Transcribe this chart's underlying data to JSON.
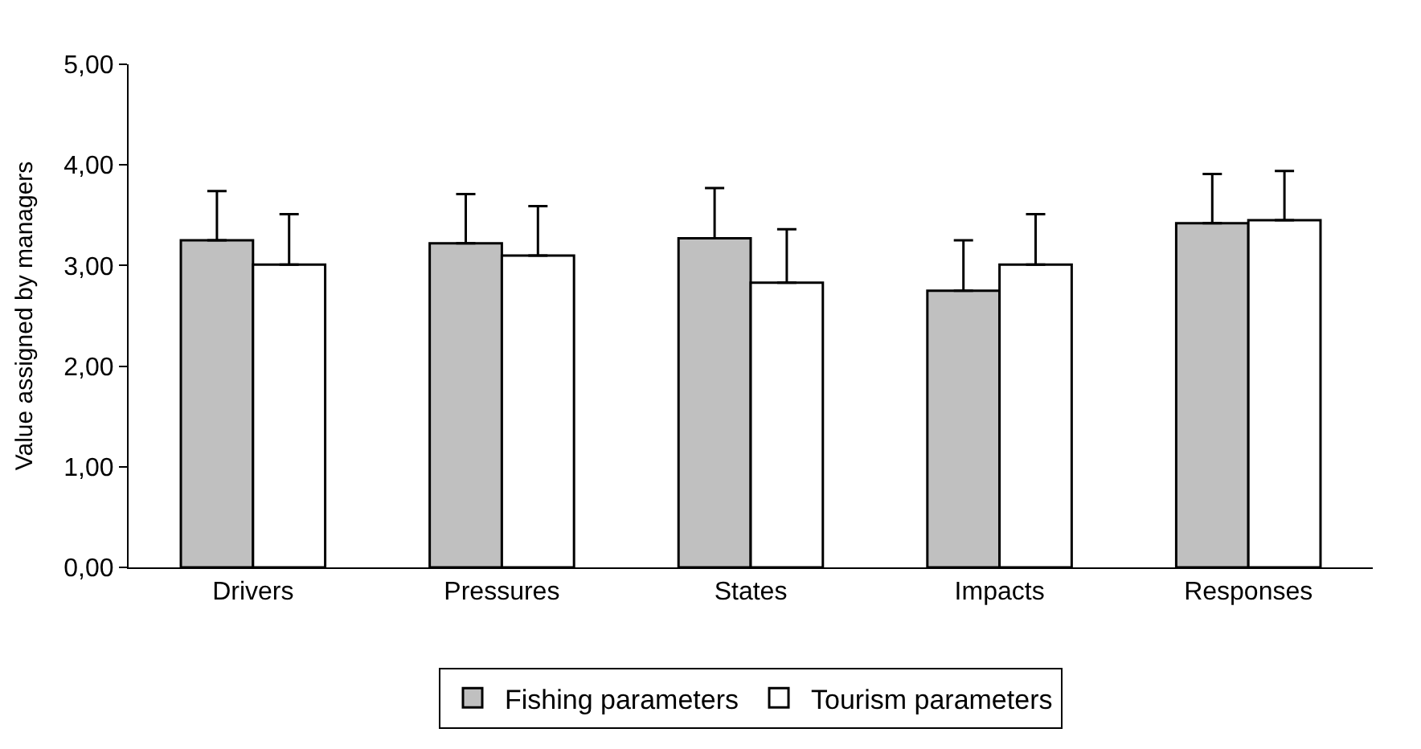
{
  "chart_data": {
    "type": "bar",
    "ylabel": "Value assigned by managers",
    "categories": [
      "Drivers",
      "Pressures",
      "States",
      "Impacts",
      "Responses"
    ],
    "series": [
      {
        "name": "Fishing parameters",
        "color": "#c0c0c0",
        "values": [
          3.25,
          3.22,
          3.27,
          2.75,
          3.42
        ],
        "errors": [
          [
            3.25,
            3.74
          ],
          [
            3.22,
            3.71
          ],
          [
            3.27,
            3.77
          ],
          [
            2.75,
            3.25
          ],
          [
            3.42,
            3.91
          ]
        ]
      },
      {
        "name": "Tourism parameters",
        "color": "#ffffff",
        "values": [
          3.01,
          3.1,
          2.83,
          3.01,
          3.45
        ],
        "errors": [
          [
            3.01,
            3.51
          ],
          [
            3.1,
            3.59
          ],
          [
            2.83,
            3.36
          ],
          [
            3.01,
            3.51
          ],
          [
            3.45,
            3.94
          ]
        ]
      }
    ],
    "ylim": [
      0,
      5
    ],
    "yticks": [
      {
        "value": 0,
        "label": "0,00"
      },
      {
        "value": 1,
        "label": "1,00"
      },
      {
        "value": 2,
        "label": "2,00"
      },
      {
        "value": 3,
        "label": "3,00"
      },
      {
        "value": 4,
        "label": "4,00"
      },
      {
        "value": 5,
        "label": "5,00"
      }
    ],
    "legend": "bottom"
  }
}
